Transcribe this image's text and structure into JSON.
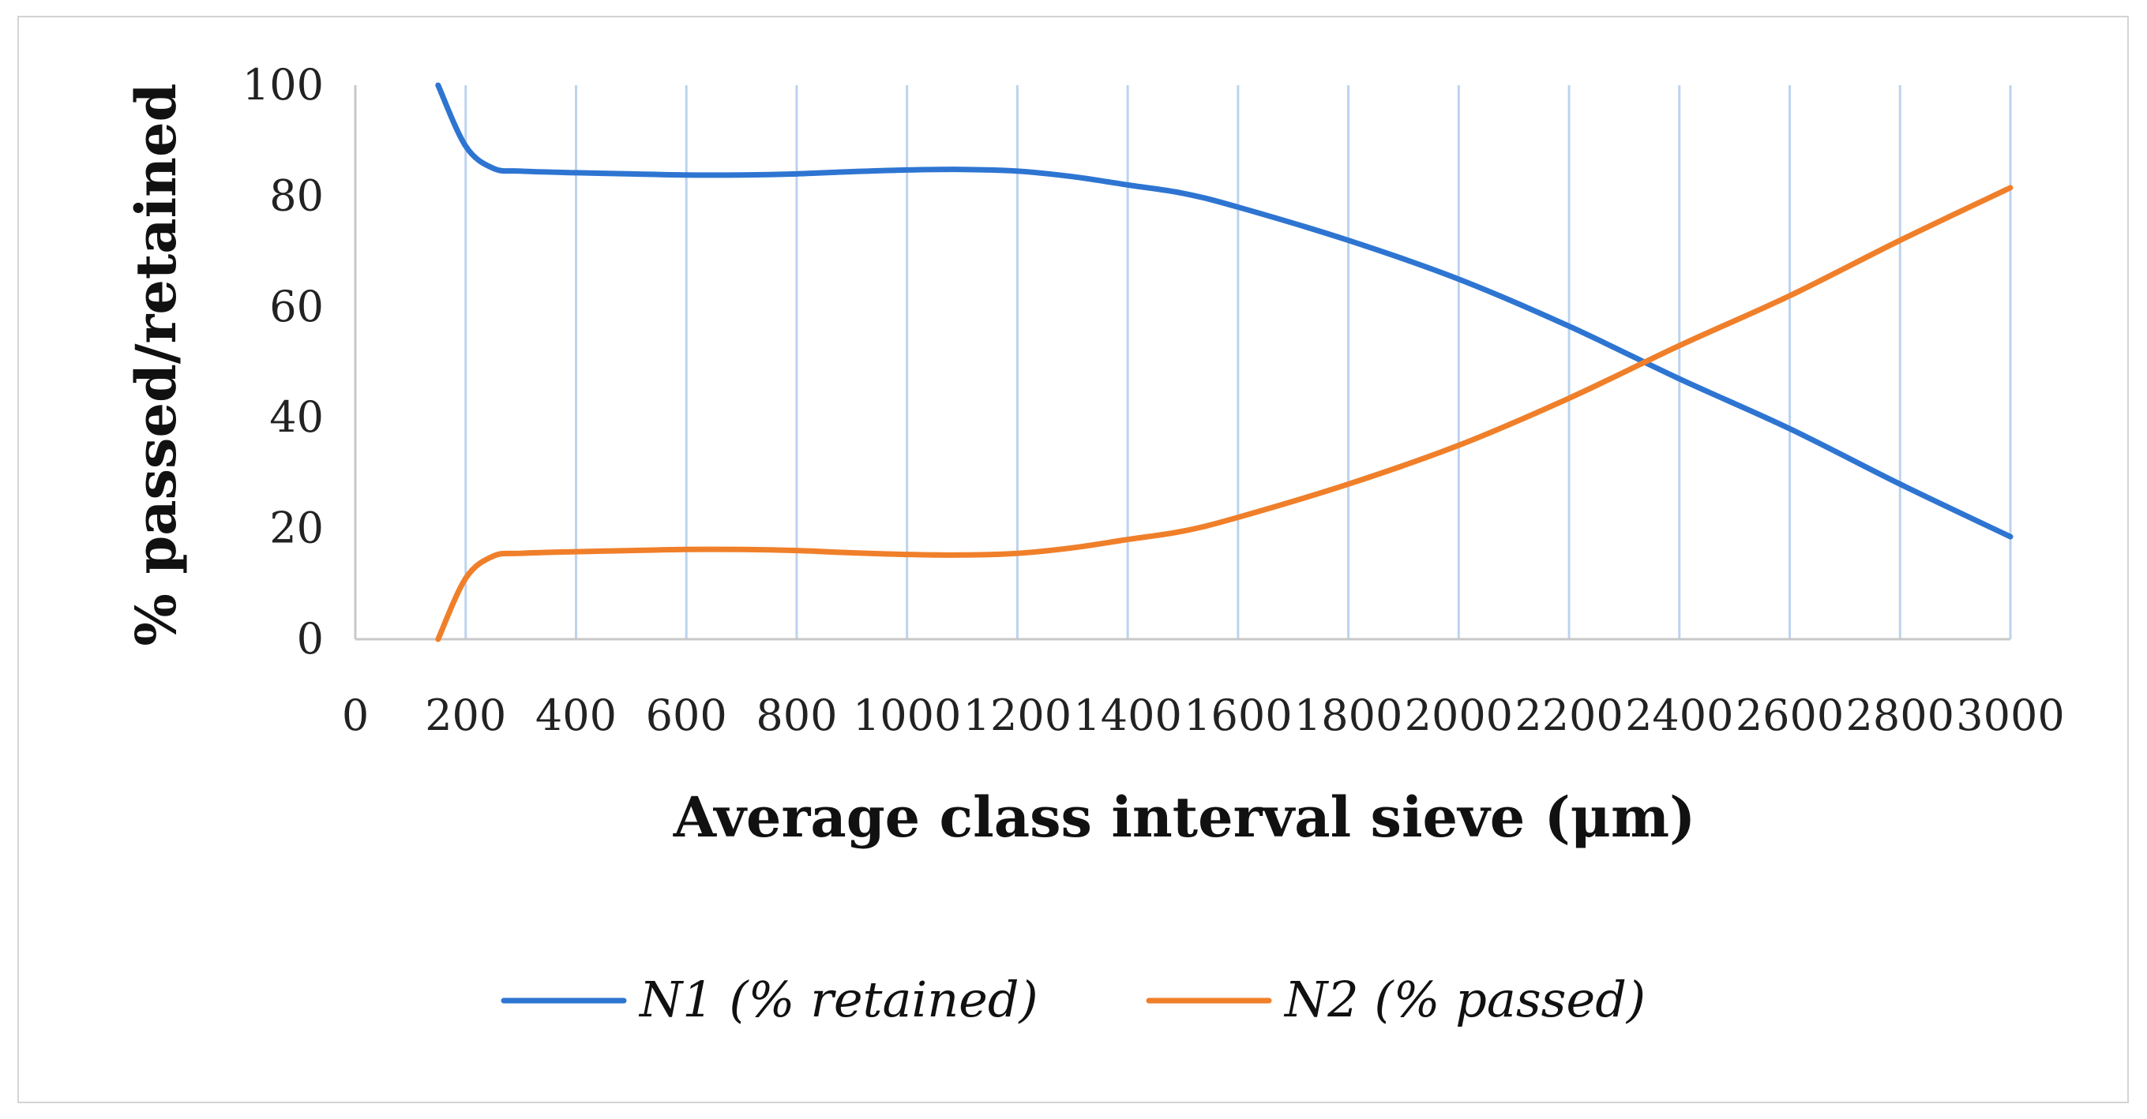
{
  "chart_data": {
    "type": "line",
    "title": "",
    "xlabel": "Average class interval sieve (μm)",
    "ylabel": "% passed/retained",
    "xlim": [
      0,
      3000
    ],
    "ylim": [
      0,
      100
    ],
    "x_ticks": [
      "0",
      "200",
      "400",
      "600",
      "800",
      "1000",
      "1200",
      "1400",
      "1600",
      "1800",
      "2000",
      "2200",
      "2400",
      "2600",
      "2800",
      "3000"
    ],
    "y_ticks": [
      "0",
      "20",
      "40",
      "60",
      "80",
      "100"
    ],
    "grid": "vertical",
    "legend_position": "bottom",
    "series": [
      {
        "name": "N1 (% retained)",
        "color": "#2E75D2",
        "x": [
          150,
          200,
          250,
          300,
          400,
          500,
          600,
          700,
          800,
          900,
          1000,
          1100,
          1200,
          1300,
          1400,
          1500,
          1600,
          1800,
          2000,
          2200,
          2400,
          2600,
          2800,
          3000
        ],
        "y": [
          100,
          89,
          85,
          84.5,
          84.2,
          84,
          83.8,
          83.8,
          84,
          84.4,
          84.7,
          84.8,
          84.5,
          83.5,
          82,
          80.5,
          78,
          72,
          65,
          56.5,
          47,
          38,
          28,
          18.5
        ]
      },
      {
        "name": "N2 (% passed)",
        "color": "#F07F2A",
        "x": [
          150,
          200,
          250,
          300,
          400,
          500,
          600,
          700,
          800,
          900,
          1000,
          1100,
          1200,
          1300,
          1400,
          1500,
          1600,
          1800,
          2000,
          2200,
          2400,
          2600,
          2800,
          3000
        ],
        "y": [
          0,
          11,
          15,
          15.5,
          15.8,
          16,
          16.2,
          16.2,
          16,
          15.6,
          15.3,
          15.2,
          15.5,
          16.5,
          18,
          19.5,
          22,
          28,
          35,
          43.5,
          53,
          62,
          72,
          81.5
        ]
      }
    ]
  }
}
